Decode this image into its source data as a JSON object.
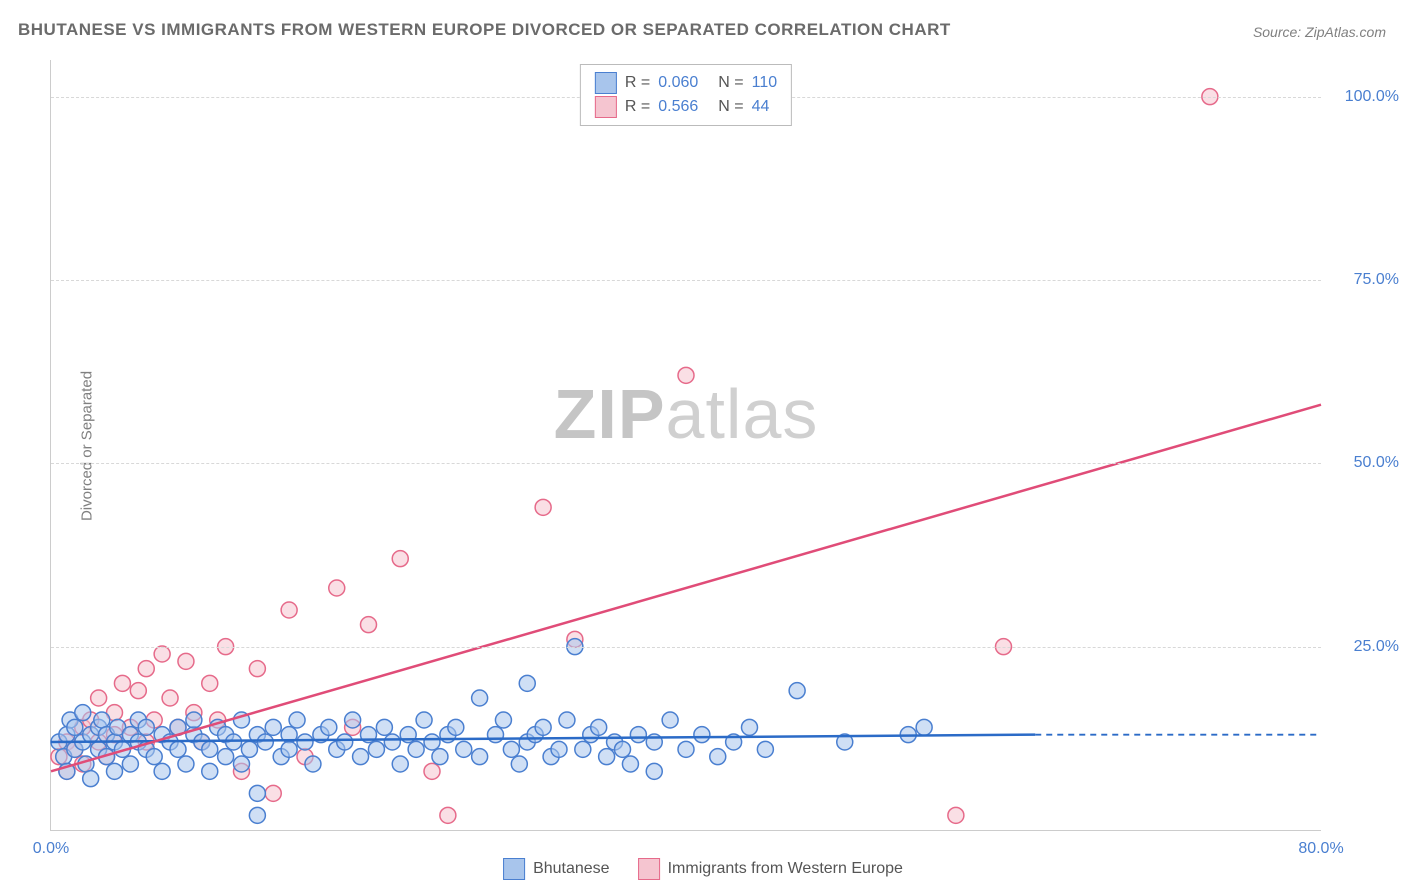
{
  "title": "BHUTANESE VS IMMIGRANTS FROM WESTERN EUROPE DIVORCED OR SEPARATED CORRELATION CHART",
  "source": "Source: ZipAtlas.com",
  "y_axis_label": "Divorced or Separated",
  "watermark_zip": "ZIP",
  "watermark_atlas": "atlas",
  "chart": {
    "type": "scatter",
    "xlim": [
      0,
      80
    ],
    "ylim": [
      0,
      105
    ],
    "x_ticks": [
      {
        "v": 0,
        "label": "0.0%"
      },
      {
        "v": 80,
        "label": "80.0%"
      }
    ],
    "y_ticks": [
      {
        "v": 25,
        "label": "25.0%"
      },
      {
        "v": 50,
        "label": "50.0%"
      },
      {
        "v": 75,
        "label": "75.0%"
      },
      {
        "v": 100,
        "label": "100.0%"
      }
    ],
    "background_color": "#ffffff",
    "grid_color": "#d8d8d8",
    "axis_label_color": "#4a7fd0",
    "title_color": "#6b6b6b",
    "title_fontsize": 17,
    "axis_fontsize": 16,
    "marker_radius": 8,
    "marker_opacity": 0.55,
    "line_width": 2.5
  },
  "series": {
    "blue": {
      "name": "Bhutanese",
      "fill": "#a8c5ec",
      "stroke": "#4a7fd0",
      "line_color": "#2b6bc7",
      "R": "0.060",
      "N": "110",
      "trend": {
        "x1": 0,
        "y1": 12,
        "x2": 62,
        "y2": 13,
        "dash_x1": 62,
        "dash_x2": 80,
        "dash_y": 13
      },
      "points": [
        [
          0.5,
          12
        ],
        [
          0.8,
          10
        ],
        [
          1,
          13
        ],
        [
          1,
          8
        ],
        [
          1.2,
          15
        ],
        [
          1.5,
          14
        ],
        [
          1.5,
          11
        ],
        [
          2,
          12
        ],
        [
          2,
          16
        ],
        [
          2.2,
          9
        ],
        [
          2.5,
          13
        ],
        [
          2.5,
          7
        ],
        [
          3,
          14
        ],
        [
          3,
          11
        ],
        [
          3.2,
          15
        ],
        [
          3.5,
          10
        ],
        [
          3.5,
          13
        ],
        [
          4,
          12
        ],
        [
          4,
          8
        ],
        [
          4.2,
          14
        ],
        [
          4.5,
          11
        ],
        [
          5,
          13
        ],
        [
          5,
          9
        ],
        [
          5.5,
          15
        ],
        [
          5.5,
          12
        ],
        [
          6,
          11
        ],
        [
          6,
          14
        ],
        [
          6.5,
          10
        ],
        [
          7,
          13
        ],
        [
          7,
          8
        ],
        [
          7.5,
          12
        ],
        [
          8,
          14
        ],
        [
          8,
          11
        ],
        [
          8.5,
          9
        ],
        [
          9,
          13
        ],
        [
          9,
          15
        ],
        [
          9.5,
          12
        ],
        [
          10,
          11
        ],
        [
          10,
          8
        ],
        [
          10.5,
          14
        ],
        [
          11,
          13
        ],
        [
          11,
          10
        ],
        [
          11.5,
          12
        ],
        [
          12,
          15
        ],
        [
          12,
          9
        ],
        [
          12.5,
          11
        ],
        [
          13,
          13
        ],
        [
          13,
          5
        ],
        [
          13,
          2
        ],
        [
          13.5,
          12
        ],
        [
          14,
          14
        ],
        [
          14.5,
          10
        ],
        [
          15,
          13
        ],
        [
          15,
          11
        ],
        [
          15.5,
          15
        ],
        [
          16,
          12
        ],
        [
          16.5,
          9
        ],
        [
          17,
          13
        ],
        [
          17.5,
          14
        ],
        [
          18,
          11
        ],
        [
          18.5,
          12
        ],
        [
          19,
          15
        ],
        [
          19.5,
          10
        ],
        [
          20,
          13
        ],
        [
          20.5,
          11
        ],
        [
          21,
          14
        ],
        [
          21.5,
          12
        ],
        [
          22,
          9
        ],
        [
          22.5,
          13
        ],
        [
          23,
          11
        ],
        [
          23.5,
          15
        ],
        [
          24,
          12
        ],
        [
          24.5,
          10
        ],
        [
          25,
          13
        ],
        [
          25.5,
          14
        ],
        [
          26,
          11
        ],
        [
          27,
          10
        ],
        [
          27,
          18
        ],
        [
          28,
          13
        ],
        [
          28.5,
          15
        ],
        [
          29,
          11
        ],
        [
          29.5,
          9
        ],
        [
          30,
          12
        ],
        [
          30,
          20
        ],
        [
          30.5,
          13
        ],
        [
          31,
          14
        ],
        [
          31.5,
          10
        ],
        [
          32,
          11
        ],
        [
          32.5,
          15
        ],
        [
          33,
          25
        ],
        [
          33.5,
          11
        ],
        [
          34,
          13
        ],
        [
          34.5,
          14
        ],
        [
          35,
          10
        ],
        [
          35.5,
          12
        ],
        [
          36,
          11
        ],
        [
          36.5,
          9
        ],
        [
          37,
          13
        ],
        [
          38,
          12
        ],
        [
          38,
          8
        ],
        [
          39,
          15
        ],
        [
          40,
          11
        ],
        [
          41,
          13
        ],
        [
          42,
          10
        ],
        [
          43,
          12
        ],
        [
          44,
          14
        ],
        [
          45,
          11
        ],
        [
          47,
          19
        ],
        [
          50,
          12
        ],
        [
          54,
          13
        ],
        [
          55,
          14
        ]
      ]
    },
    "pink": {
      "name": "Immigrants from Western Europe",
      "fill": "#f5c5d0",
      "stroke": "#e66a8a",
      "line_color": "#e04c78",
      "R": "0.566",
      "N": "44",
      "trend": {
        "x1": 0,
        "y1": 8,
        "x2": 80,
        "y2": 58
      },
      "points": [
        [
          0.5,
          10
        ],
        [
          1,
          8
        ],
        [
          1,
          12
        ],
        [
          1.5,
          11
        ],
        [
          2,
          14
        ],
        [
          2,
          9
        ],
        [
          2.5,
          15
        ],
        [
          3,
          12
        ],
        [
          3,
          18
        ],
        [
          3.5,
          10
        ],
        [
          4,
          16
        ],
        [
          4,
          13
        ],
        [
          4.5,
          20
        ],
        [
          5,
          14
        ],
        [
          5.5,
          19
        ],
        [
          6,
          12
        ],
        [
          6,
          22
        ],
        [
          6.5,
          15
        ],
        [
          7,
          24
        ],
        [
          7.5,
          18
        ],
        [
          8,
          14
        ],
        [
          8.5,
          23
        ],
        [
          9,
          16
        ],
        [
          9.5,
          12
        ],
        [
          10,
          20
        ],
        [
          10.5,
          15
        ],
        [
          11,
          25
        ],
        [
          12,
          8
        ],
        [
          13,
          22
        ],
        [
          14,
          5
        ],
        [
          15,
          30
        ],
        [
          16,
          10
        ],
        [
          18,
          33
        ],
        [
          19,
          14
        ],
        [
          20,
          28
        ],
        [
          22,
          37
        ],
        [
          24,
          8
        ],
        [
          25,
          2
        ],
        [
          31,
          44
        ],
        [
          33,
          26
        ],
        [
          40,
          62
        ],
        [
          57,
          2
        ],
        [
          60,
          25
        ],
        [
          73,
          100
        ]
      ]
    }
  },
  "legend_top": {
    "rows": [
      {
        "swatch_fill": "#a8c5ec",
        "swatch_stroke": "#4a7fd0",
        "r_label": "R =",
        "r_val": "0.060",
        "n_label": "N =",
        "n_val": "110"
      },
      {
        "swatch_fill": "#f5c5d0",
        "swatch_stroke": "#e66a8a",
        "r_label": "R =",
        "r_val": "0.566",
        "n_label": "N =",
        "n_val": "44"
      }
    ]
  },
  "legend_bottom": {
    "items": [
      {
        "swatch_fill": "#a8c5ec",
        "swatch_stroke": "#4a7fd0",
        "label": "Bhutanese"
      },
      {
        "swatch_fill": "#f5c5d0",
        "swatch_stroke": "#e66a8a",
        "label": "Immigrants from Western Europe"
      }
    ]
  }
}
